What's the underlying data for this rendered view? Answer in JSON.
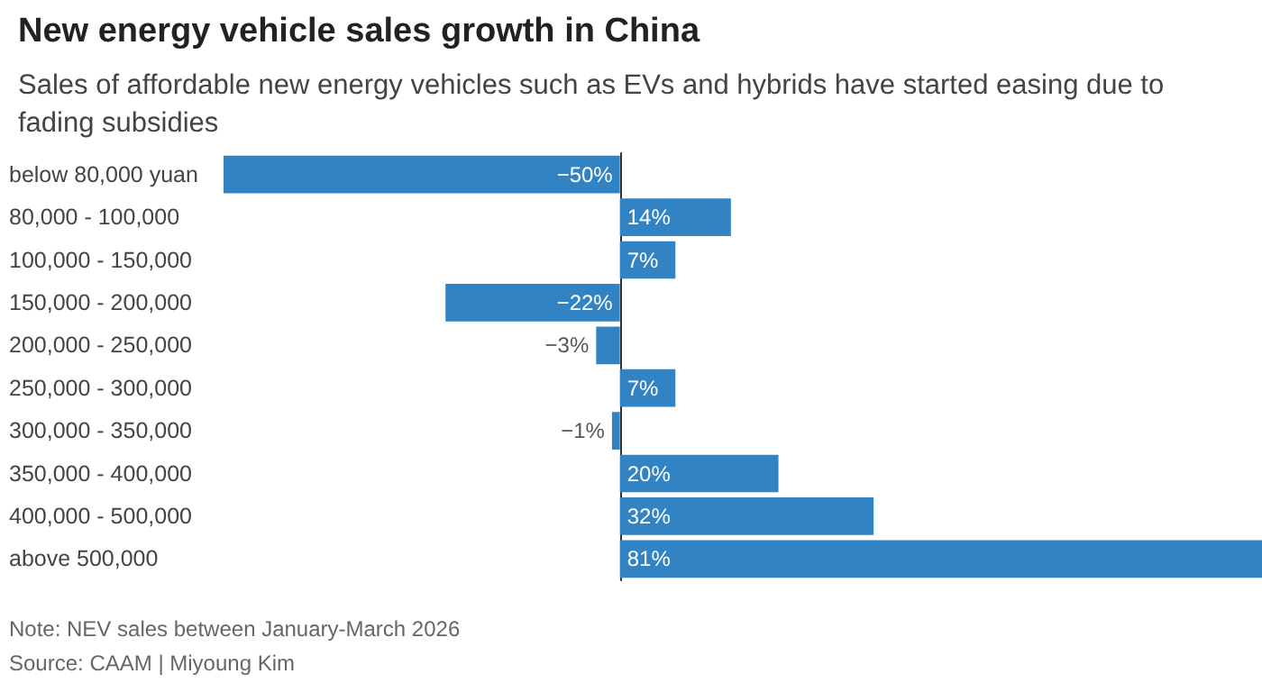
{
  "chart_data": {
    "type": "bar",
    "orientation": "horizontal",
    "title": "New energy vehicle sales growth in China",
    "subtitle": "Sales of affordable new energy vehicles such as EVs and hybrids have started easing due to fading subsidies",
    "categories": [
      "below 80,000 yuan",
      "80,000 - 100,000",
      "100,000 - 150,000",
      "150,000 - 200,000",
      "200,000 - 250,000",
      "250,000 - 300,000",
      "300,000 - 350,000",
      "350,000 - 400,000",
      "400,000 - 500,000",
      "above 500,000"
    ],
    "values": [
      -50,
      14,
      7,
      -22,
      -3,
      7,
      -1,
      20,
      32,
      81
    ],
    "value_labels": [
      "−50%",
      "14%",
      "7%",
      "−22%",
      "−3%",
      "7%",
      "−1%",
      "20%",
      "32%",
      "81%"
    ],
    "color": "#3283c4",
    "annotations": [
      "Note: NEV sales between January-March 2026",
      "Source: CAAM | Miyoung Kim"
    ]
  }
}
